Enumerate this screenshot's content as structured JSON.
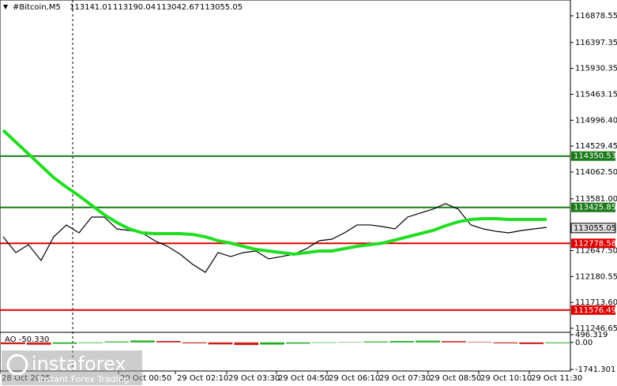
{
  "chart_data": {
    "type": "line",
    "title": "#Bitcoin,M5",
    "ohlc_header": [
      "113141.01",
      "113190.04",
      "113042.67",
      "113055.05"
    ],
    "x": [
      4,
      20,
      36,
      52,
      68,
      84,
      100,
      116,
      132,
      148,
      164,
      180,
      196,
      212,
      228,
      244,
      260,
      276,
      292,
      308,
      324,
      340,
      356,
      372,
      388,
      404,
      420,
      436,
      452,
      468,
      484,
      500,
      516,
      532,
      548,
      564,
      580,
      596,
      612,
      628,
      644,
      660,
      676,
      692
    ],
    "xlim": [
      0,
      722
    ],
    "x_tick_labels": [
      {
        "value": 0,
        "label": "28 Oct 2025"
      },
      {
        "value": 150,
        "label": "29 Oct 00:50"
      },
      {
        "value": 222,
        "label": "29 Oct 02:10"
      },
      {
        "value": 287,
        "label": "29 Oct 03:30"
      },
      {
        "value": 350,
        "label": "29 Oct 04:50"
      },
      {
        "value": 414,
        "label": "29 Oct 06:10"
      },
      {
        "value": 478,
        "label": "29 Oct 07:30"
      },
      {
        "value": 542,
        "label": "29 Oct 08:50"
      },
      {
        "value": 606,
        "label": "29 Oct 10:10"
      },
      {
        "value": 670,
        "label": "29 Oct 11:30"
      }
    ],
    "series": [
      {
        "name": "Price",
        "color": "#000000",
        "values": [
          112896,
          112612,
          112754,
          112470,
          112896,
          113110,
          112967,
          113252,
          113252,
          113038,
          113010,
          112967,
          112825,
          112725,
          112583,
          112398,
          112256,
          112612,
          112540,
          112612,
          112640,
          112498,
          112540,
          112583,
          112683,
          112825,
          112853,
          112967,
          113110,
          113110,
          113081,
          113038,
          113252,
          113323,
          113394,
          113493,
          113394,
          113110,
          113038,
          112995,
          112967,
          113010,
          113038,
          113067
        ]
      },
      {
        "name": "MA",
        "color": "#22dd22",
        "values": [
          114816,
          114603,
          114390,
          114176,
          113963,
          113792,
          113636,
          113465,
          113294,
          113152,
          113038,
          112967,
          112953,
          112953,
          112953,
          112939,
          112896,
          112825,
          112782,
          112725,
          112668,
          112640,
          112612,
          112583,
          112612,
          112640,
          112640,
          112683,
          112725,
          112754,
          112782,
          112839,
          112896,
          112953,
          113010,
          113095,
          113166,
          113209,
          113223,
          113223,
          113209,
          113209,
          113209,
          113209
        ]
      }
    ],
    "ylim": [
      111175,
      117163
    ],
    "yticks": [
      116878.55,
      116397.35,
      115930.35,
      115463.15,
      {
        "value": 114996.4,
        "label": "114996.40"
      },
      114529.45,
      {
        "value": 114062.5,
        "label": "114062.50"
      },
      {
        "value": 113581,
        "label": "113581.00"
      },
      {
        "value": 112647.5,
        "label": "112647.50"
      },
      112180.55,
      {
        "value": 111713.6,
        "label": "111713.60"
      },
      111246.65
    ],
    "levels": [
      {
        "value": 114350.53,
        "color": "#1a7a1a"
      },
      {
        "value": 113425.85,
        "color": "#1a7a1a"
      },
      {
        "value": 112778.58,
        "color": "#dd0000"
      },
      {
        "value": 111576.49,
        "color": "#dd0000"
      }
    ],
    "current_price": {
      "value": 113055.05,
      "label": "113055.05"
    },
    "ao": {
      "label": "AO -50.330",
      "ylim": [
        -1741.301,
        496.319
      ],
      "yticks": [
        496.319,
        {
          "value": 0,
          "label": "0.00"
        },
        -1741.301
      ],
      "values": [
        -120,
        -150,
        -90,
        -40,
        60,
        120,
        90,
        -60,
        -130,
        -170,
        -140,
        -80,
        -30,
        20,
        60,
        90,
        110,
        80,
        30,
        -60,
        -110,
        -50
      ]
    },
    "logo": {
      "name": "instaforex",
      "tagline": "Instant Forex Trading"
    }
  }
}
